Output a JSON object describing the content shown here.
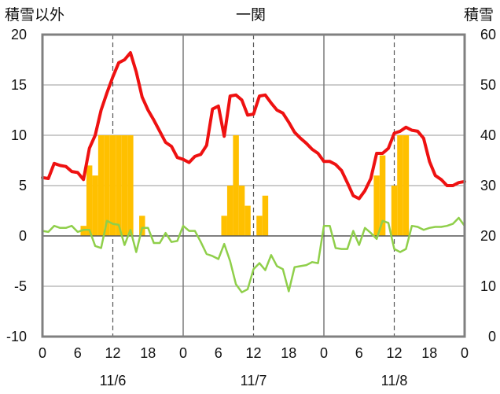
{
  "header": {
    "left_label": "積雪以外",
    "title": "一関",
    "right_label": "積雪"
  },
  "chart_data": {
    "type": "line",
    "title": "一関",
    "y_left": {
      "label": "積雪以外",
      "lim": [
        -10,
        20
      ],
      "ticks": [
        20,
        15,
        10,
        5,
        0,
        -5,
        -10
      ]
    },
    "y_right": {
      "label": "積雪",
      "lim": [
        0,
        60
      ],
      "ticks": [
        60,
        50,
        40,
        30,
        20,
        10,
        0
      ]
    },
    "x_hours": {
      "lim": [
        0,
        72
      ],
      "major_ticks": [
        0,
        24,
        48,
        72
      ],
      "dashed_ticks": [
        12,
        36,
        60
      ]
    },
    "x_tick_labels": [
      "0",
      "6",
      "12",
      "18",
      "0",
      "6",
      "12",
      "18",
      "0",
      "6",
      "12",
      "18",
      "0"
    ],
    "day_labels": [
      "11/6",
      "11/7",
      "11/8"
    ],
    "grid": true,
    "legend": "none",
    "colors": {
      "temperature": "#ee1111",
      "wind": "#8fcf4a",
      "snow_bar": "#ffc000",
      "baseline": "#6a3fa0"
    },
    "series": [
      {
        "kind": "line",
        "axis": "left",
        "color_key": "temperature",
        "x": [
          0,
          1,
          2,
          3,
          4,
          5,
          6,
          7,
          8,
          9,
          10,
          11,
          12,
          13,
          14,
          15,
          16,
          17,
          18,
          19,
          20,
          21,
          22,
          23,
          24,
          25,
          26,
          27,
          28,
          29,
          30,
          31,
          32,
          33,
          34,
          35,
          36,
          37,
          38,
          39,
          40,
          41,
          42,
          43,
          44,
          45,
          46,
          47,
          48,
          49,
          50,
          51,
          52,
          53,
          54,
          55,
          56,
          57,
          58,
          59,
          60,
          61,
          62,
          63,
          64,
          65,
          66,
          67,
          68,
          69,
          70,
          71,
          72
        ],
        "values": [
          5.8,
          5.7,
          7.2,
          7.0,
          6.9,
          6.4,
          6.3,
          5.6,
          8.7,
          10.0,
          12.5,
          14.2,
          15.8,
          17.2,
          17.5,
          18.2,
          16.3,
          13.8,
          12.5,
          11.5,
          10.4,
          9.3,
          8.9,
          7.8,
          7.6,
          7.3,
          7.9,
          8.1,
          9.0,
          12.6,
          12.9,
          9.9,
          13.9,
          14.0,
          13.5,
          12.0,
          12.1,
          13.9,
          14.0,
          13.2,
          12.5,
          12.2,
          11.3,
          10.3,
          9.7,
          9.2,
          8.6,
          8.2,
          7.4,
          7.4,
          7.1,
          6.5,
          5.3,
          4.0,
          3.7,
          4.5,
          5.7,
          8.2,
          8.2,
          8.7,
          10.2,
          10.4,
          10.8,
          10.5,
          10.4,
          9.7,
          7.4,
          6.0,
          5.6,
          5.0,
          5.0,
          5.3,
          5.4
        ]
      },
      {
        "kind": "line",
        "axis": "left",
        "color_key": "wind",
        "x": [
          0,
          1,
          2,
          3,
          4,
          5,
          6,
          7,
          8,
          9,
          10,
          11,
          12,
          13,
          14,
          15,
          16,
          17,
          18,
          19,
          20,
          21,
          22,
          23,
          24,
          25,
          26,
          27,
          28,
          29,
          30,
          31,
          32,
          33,
          34,
          35,
          36,
          37,
          38,
          39,
          40,
          41,
          42,
          43,
          44,
          45,
          46,
          47,
          48,
          49,
          50,
          51,
          52,
          53,
          54,
          55,
          56,
          57,
          58,
          59,
          60,
          61,
          62,
          63,
          64,
          65,
          66,
          67,
          68,
          69,
          70,
          71,
          72
        ],
        "values": [
          0.5,
          0.4,
          1.0,
          0.8,
          0.8,
          1.0,
          0.4,
          0.6,
          0.6,
          -1.0,
          -1.2,
          1.5,
          1.2,
          1.1,
          -0.9,
          0.6,
          -1.6,
          0.8,
          0.8,
          -0.7,
          -0.7,
          0.3,
          -0.6,
          -0.5,
          1.0,
          0.5,
          0.5,
          -0.6,
          -1.8,
          -2.0,
          -2.3,
          -0.8,
          -2.5,
          -4.8,
          -5.6,
          -5.3,
          -3.3,
          -2.7,
          -3.4,
          -1.9,
          -3.0,
          -3.3,
          -5.5,
          -3.1,
          -3.0,
          -2.9,
          -2.6,
          -2.7,
          1.0,
          1.0,
          -1.2,
          -1.3,
          -1.3,
          0.5,
          -0.9,
          0.8,
          0.3,
          -0.3,
          1.5,
          1.3,
          -1.3,
          -1.6,
          -1.3,
          1.0,
          0.9,
          0.6,
          0.8,
          0.9,
          0.9,
          1.0,
          1.2,
          1.8,
          1.0
        ]
      },
      {
        "kind": "bar",
        "axis": "left",
        "color_key": "snow_bar",
        "x": [
          7,
          8,
          9,
          10,
          11,
          12,
          13,
          14,
          15,
          17,
          31,
          32,
          33,
          34,
          35,
          37,
          38,
          57,
          58,
          60,
          61,
          62
        ],
        "values": [
          1,
          7,
          6,
          10,
          10,
          10,
          10,
          10,
          10,
          2,
          2,
          5,
          10,
          5,
          3,
          2,
          4,
          6,
          8,
          5,
          10,
          10
        ]
      },
      {
        "kind": "line",
        "axis": "right",
        "color_key": "baseline",
        "x": [
          0,
          72
        ],
        "values": [
          0,
          0
        ]
      }
    ]
  }
}
